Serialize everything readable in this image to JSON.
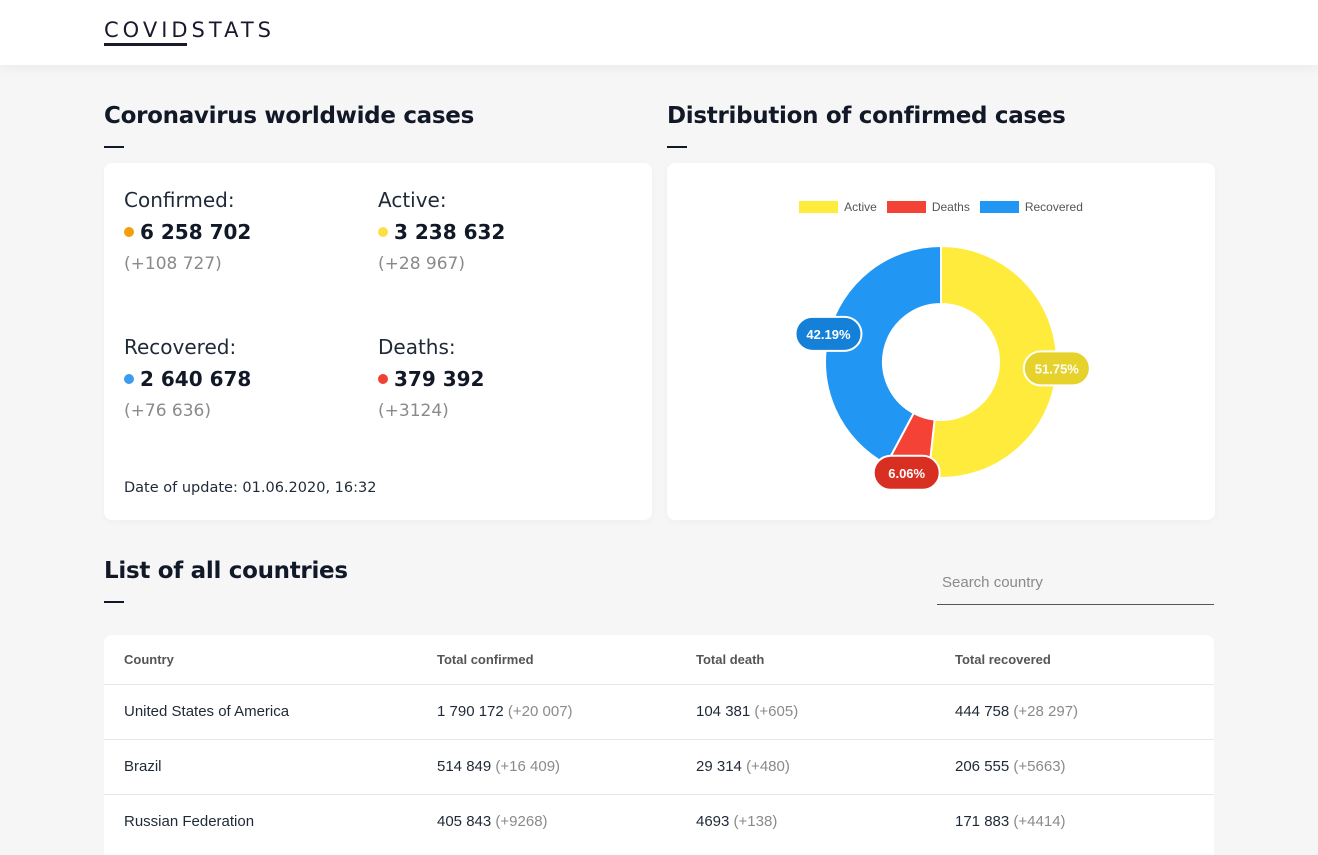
{
  "app": {
    "logo": "COVIDSTATS"
  },
  "worldwide": {
    "title": "Coronavirus worldwide cases",
    "confirmed": {
      "label": "Confirmed:",
      "value": "6 258 702",
      "delta": "(+108 727)",
      "color": "#f59e0b"
    },
    "active": {
      "label": "Active:",
      "value": "3 238 632",
      "delta": "(+28 967)",
      "color": "#fde047"
    },
    "recovered": {
      "label": "Recovered:",
      "value": "2 640 678",
      "delta": "(+76 636)",
      "color": "#3b9cf0"
    },
    "deaths": {
      "label": "Deaths:",
      "value": "379 392",
      "delta": "(+3124)",
      "color": "#ef4136"
    },
    "update": "Date of update: 01.06.2020, 16:32"
  },
  "distribution": {
    "title": "Distribution of confirmed cases"
  },
  "chart_data": {
    "type": "pie",
    "categories": [
      "Active",
      "Deaths",
      "Recovered"
    ],
    "values": [
      51.75,
      6.06,
      42.19
    ],
    "labels": [
      "51.75%",
      "6.06%",
      "42.19%"
    ],
    "colors": [
      "#ffeb3b",
      "#f44336",
      "#2196f3"
    ],
    "label_colors": [
      "#e6d22b",
      "#d92f22",
      "#1580d8"
    ],
    "legend": "top"
  },
  "countries": {
    "title": "List of all countries",
    "search_placeholder": "Search country",
    "headers": [
      "Country",
      "Total confirmed",
      "Total death",
      "Total recovered"
    ],
    "rows": [
      {
        "country": "United States of America",
        "confirmed": "1 790 172",
        "confirmed_inc": "(+20 007)",
        "death": "104 381",
        "death_inc": "(+605)",
        "recovered": "444 758",
        "recovered_inc": "(+28 297)"
      },
      {
        "country": "Brazil",
        "confirmed": "514 849",
        "confirmed_inc": "(+16 409)",
        "death": "29 314",
        "death_inc": "(+480)",
        "recovered": "206 555",
        "recovered_inc": "(+5663)"
      },
      {
        "country": "Russian Federation",
        "confirmed": "405 843",
        "confirmed_inc": "(+9268)",
        "death": "4693",
        "death_inc": "(+138)",
        "recovered": "171 883",
        "recovered_inc": "(+4414)"
      }
    ]
  }
}
